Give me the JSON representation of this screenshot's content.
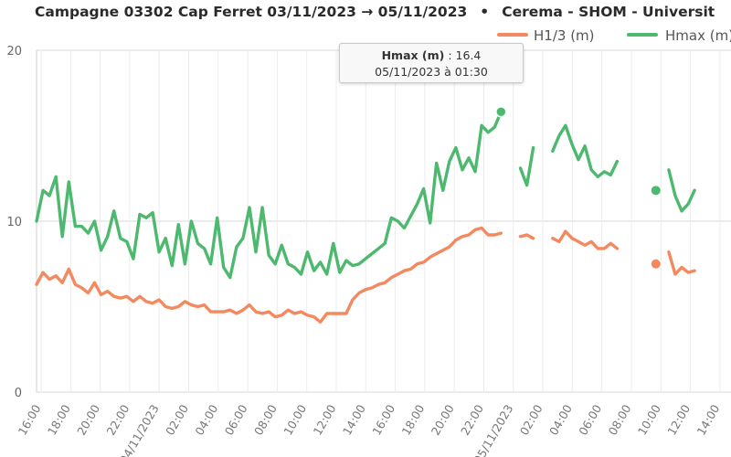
{
  "header": {
    "campaign": "Campagne 03302 Cap Ferret 03/11/2023 → 05/11/2023",
    "bullet": "•",
    "source": "Cerema - SHOM - Universit"
  },
  "tooltip": {
    "series": "Hmax (m)",
    "value_text": " : 16.4",
    "time": "05/11/2023 à 01:30"
  },
  "chart_data": {
    "type": "line",
    "ylim": [
      0,
      20
    ],
    "y_ticks": [
      "0",
      "10",
      "20"
    ],
    "x_ticks": [
      "16:00",
      "18:00",
      "20:00",
      "22:00",
      "04/11/2023",
      "02:00",
      "04:00",
      "06:00",
      "08:00",
      "10:00",
      "12:00",
      "14:00",
      "16:00",
      "18:00",
      "20:00",
      "22:00",
      "05/11/2023",
      "02:00",
      "04:00",
      "06:00",
      "08:00",
      "10:00",
      "12:00",
      "14:00"
    ],
    "series": [
      {
        "name": "H1/3 (m)",
        "color": "#f4895f",
        "values": [
          6.3,
          7.0,
          6.6,
          6.8,
          6.4,
          7.2,
          6.3,
          6.1,
          5.8,
          6.4,
          5.7,
          5.9,
          5.6,
          5.5,
          5.6,
          5.3,
          5.6,
          5.3,
          5.2,
          5.4,
          5.0,
          4.9,
          5.0,
          5.3,
          5.1,
          5.0,
          5.1,
          4.7,
          4.7,
          4.7,
          4.8,
          4.6,
          4.8,
          5.1,
          4.7,
          4.6,
          4.7,
          4.4,
          4.5,
          4.8,
          4.6,
          4.7,
          4.5,
          4.4,
          4.1,
          4.6,
          4.6,
          4.6,
          4.6,
          5.4,
          5.8,
          6.0,
          6.1,
          6.3,
          6.4,
          6.7,
          6.9,
          7.1,
          7.2,
          7.5,
          7.6,
          7.9,
          8.1,
          8.3,
          8.5,
          8.9,
          9.1,
          9.2,
          9.5,
          9.6,
          9.2,
          9.2,
          9.3,
          null,
          null,
          9.1,
          9.2,
          9.0,
          null,
          null,
          9.0,
          8.8,
          9.4,
          9.0,
          8.8,
          8.6,
          8.8,
          8.4,
          8.4,
          8.7,
          8.4,
          null,
          null,
          null,
          null,
          null,
          7.5,
          null,
          8.2,
          6.9,
          7.3,
          7.0,
          7.1
        ]
      },
      {
        "name": "Hmax (m)",
        "color": "#4cb96e",
        "values": [
          10.0,
          11.8,
          11.5,
          12.6,
          9.1,
          12.3,
          9.7,
          9.7,
          9.3,
          10.0,
          8.3,
          9.1,
          10.6,
          9.0,
          8.8,
          7.8,
          10.4,
          10.2,
          10.5,
          8.2,
          9.0,
          7.4,
          9.8,
          7.5,
          10.0,
          8.7,
          8.4,
          7.5,
          10.2,
          7.3,
          6.7,
          8.5,
          9.0,
          10.8,
          8.2,
          10.8,
          8.0,
          7.5,
          8.6,
          7.5,
          7.3,
          6.9,
          8.2,
          7.1,
          7.6,
          6.9,
          8.7,
          7.0,
          7.7,
          7.4,
          7.5,
          7.8,
          8.1,
          8.4,
          8.7,
          10.2,
          10.0,
          9.6,
          10.3,
          11.0,
          11.9,
          9.9,
          13.4,
          11.8,
          13.5,
          14.3,
          13.0,
          13.7,
          12.9,
          15.6,
          15.2,
          15.5,
          16.4,
          null,
          null,
          13.1,
          12.1,
          14.3,
          null,
          null,
          14.1,
          15.0,
          15.6,
          14.5,
          13.6,
          14.4,
          13.0,
          12.6,
          12.9,
          12.7,
          13.5,
          null,
          null,
          null,
          null,
          null,
          11.8,
          null,
          13.0,
          11.5,
          10.6,
          11.0,
          11.8
        ]
      }
    ]
  }
}
